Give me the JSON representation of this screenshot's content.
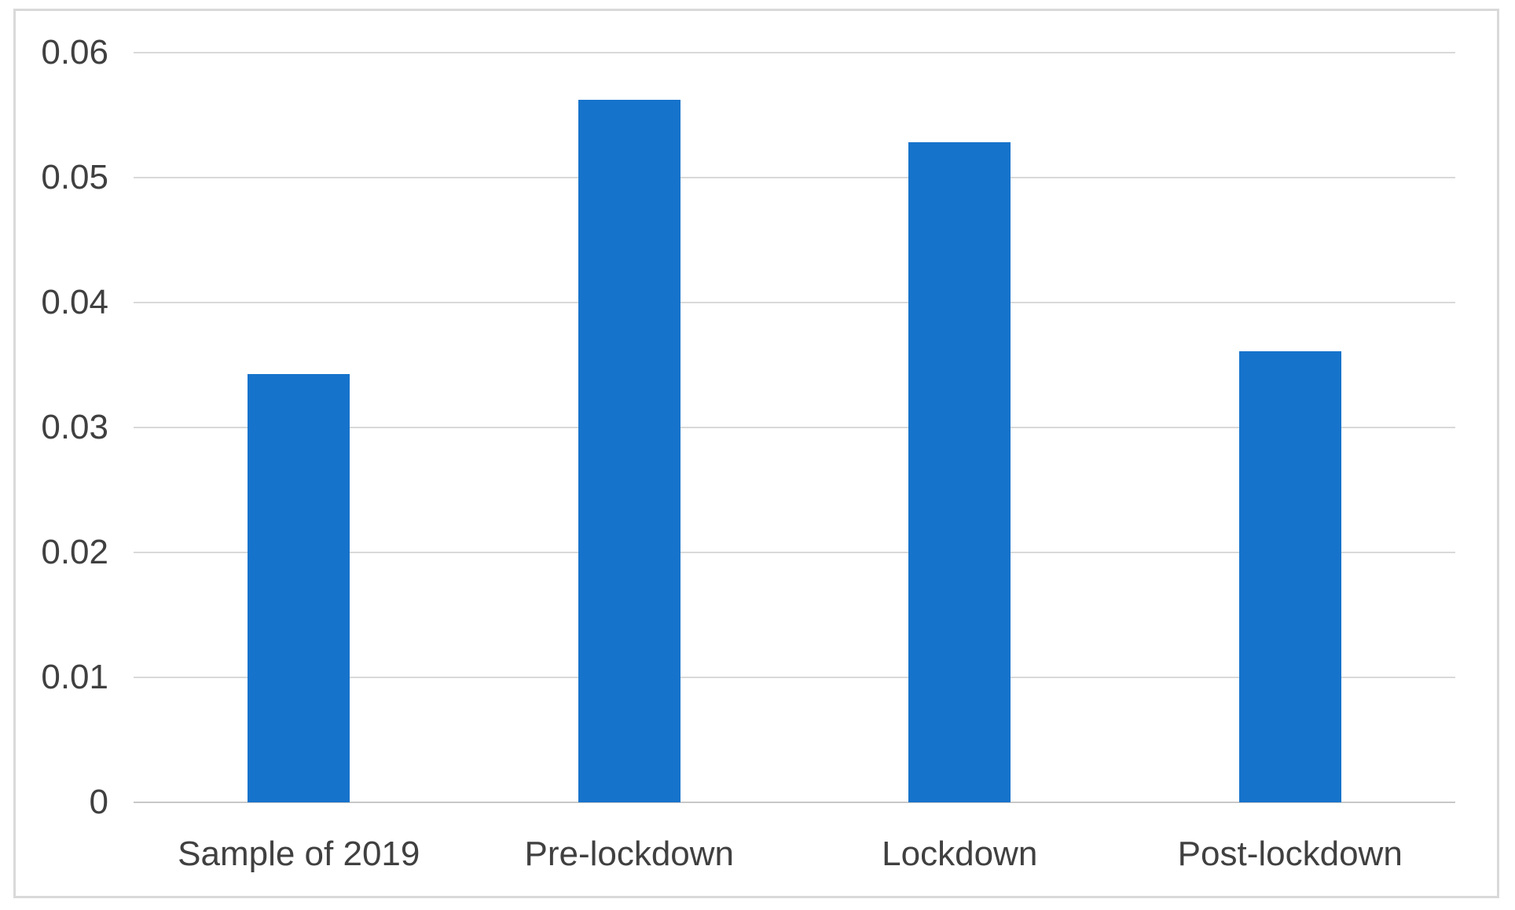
{
  "figure": {
    "background_color": "#ffffff",
    "border_color": "#d9d9d9"
  },
  "chart_data": {
    "type": "bar",
    "title": "",
    "xlabel": "",
    "ylabel": "",
    "categories": [
      "Sample of 2019",
      "Pre-lockdown",
      "Lockdown",
      "Post-lockdown"
    ],
    "values": [
      0.0343,
      0.0562,
      0.0528,
      0.0361
    ],
    "values_rounded": [
      0.034,
      0.056,
      0.053,
      0.036
    ],
    "ylim": [
      0,
      0.06
    ],
    "yticks": [
      0,
      0.01,
      0.02,
      0.03,
      0.04,
      0.05,
      0.06
    ],
    "ytick_labels": [
      "0",
      "0.01",
      "0.02",
      "0.03",
      "0.04",
      "0.05",
      "0.06"
    ],
    "grid": true,
    "legend": false,
    "bar_color": "#1673cb",
    "gridline_color": "#d9d9d9",
    "zero_line_color": "#c8c8c8",
    "text_color": "#404040"
  }
}
